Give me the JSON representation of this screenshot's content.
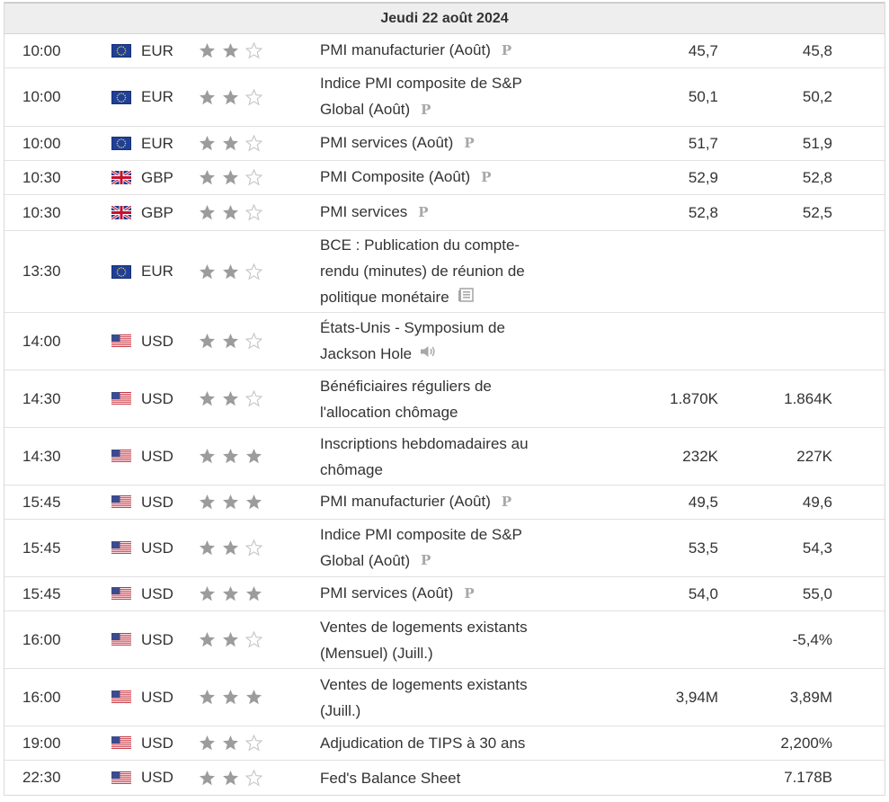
{
  "header": {
    "date": "Jeudi 22 août 2024"
  },
  "colors": {
    "star_filled": "#9c9c9c",
    "star_empty": "#c8c8c8",
    "icon_gray": "#a8a8a8"
  },
  "rows": [
    {
      "time": "10:00",
      "flag": "eu-flag",
      "currency": "EUR",
      "importance": 2,
      "event": "PMI manufacturier (Août)",
      "icon": "p",
      "previous": "45,7",
      "forecast": "45,8",
      "height": 38
    },
    {
      "time": "10:00",
      "flag": "eu-flag",
      "currency": "EUR",
      "importance": 2,
      "event": "Indice PMI composite de S&P Global (Août)",
      "icon": "p",
      "previous": "50,1",
      "forecast": "50,2",
      "height": 65
    },
    {
      "time": "10:00",
      "flag": "eu-flag",
      "currency": "EUR",
      "importance": 2,
      "event": "PMI services (Août)",
      "icon": "p",
      "previous": "51,7",
      "forecast": "51,9",
      "height": 38
    },
    {
      "time": "10:30",
      "flag": "uk-flag",
      "currency": "GBP",
      "importance": 2,
      "event": "PMI Composite (Août)",
      "icon": "p",
      "previous": "52,9",
      "forecast": "52,8",
      "height": 38
    },
    {
      "time": "10:30",
      "flag": "uk-flag",
      "currency": "GBP",
      "importance": 2,
      "event": "PMI services",
      "icon": "p",
      "previous": "52,8",
      "forecast": "52,5",
      "height": 40
    },
    {
      "time": "13:30",
      "flag": "eu-flag",
      "currency": "EUR",
      "importance": 2,
      "event": "BCE : Publication du compte-rendu (minutes) de réunion de politique monétaire",
      "icon": "doc",
      "previous": "",
      "forecast": "",
      "height": 91
    },
    {
      "time": "14:00",
      "flag": "us-flag",
      "currency": "USD",
      "importance": 2,
      "event": "États-Unis - Symposium de Jackson Hole",
      "icon": "speaker",
      "previous": "",
      "forecast": "",
      "height": 64
    },
    {
      "time": "14:30",
      "flag": "us-flag",
      "currency": "USD",
      "importance": 2,
      "event": "Bénéficiaires réguliers de l'allocation chômage",
      "icon": "",
      "previous": "1.870K",
      "forecast": "1.864K",
      "height": 64
    },
    {
      "time": "14:30",
      "flag": "us-flag",
      "currency": "USD",
      "importance": 3,
      "event": "Inscriptions hebdomadaires au chômage",
      "icon": "",
      "previous": "232K",
      "forecast": "227K",
      "height": 64
    },
    {
      "time": "15:45",
      "flag": "us-flag",
      "currency": "USD",
      "importance": 3,
      "event": "PMI manufacturier (Août)",
      "icon": "p",
      "previous": "49,5",
      "forecast": "49,6",
      "height": 38
    },
    {
      "time": "15:45",
      "flag": "us-flag",
      "currency": "USD",
      "importance": 2,
      "event": "Indice PMI composite de S&P Global (Août)",
      "icon": "p",
      "previous": "53,5",
      "forecast": "54,3",
      "height": 64
    },
    {
      "time": "15:45",
      "flag": "us-flag",
      "currency": "USD",
      "importance": 3,
      "event": "PMI services (Août)",
      "icon": "p",
      "previous": "54,0",
      "forecast": "55,0",
      "height": 38
    },
    {
      "time": "16:00",
      "flag": "us-flag",
      "currency": "USD",
      "importance": 2,
      "event": "Ventes de logements existants (Mensuel) (Juill.)",
      "icon": "",
      "previous": "",
      "forecast": "-5,4%",
      "height": 64
    },
    {
      "time": "16:00",
      "flag": "us-flag",
      "currency": "USD",
      "importance": 3,
      "event": "Ventes de logements existants (Juill.)",
      "icon": "",
      "previous": "3,94M",
      "forecast": "3,89M",
      "height": 64
    },
    {
      "time": "19:00",
      "flag": "us-flag",
      "currency": "USD",
      "importance": 2,
      "event": "Adjudication de TIPS à 30 ans",
      "icon": "",
      "previous": "",
      "forecast": "2,200%",
      "height": 38
    },
    {
      "time": "22:30",
      "flag": "us-flag",
      "currency": "USD",
      "importance": 2,
      "event": "Fed's Balance Sheet",
      "icon": "",
      "previous": "",
      "forecast": "7.178B",
      "height": 38
    }
  ]
}
